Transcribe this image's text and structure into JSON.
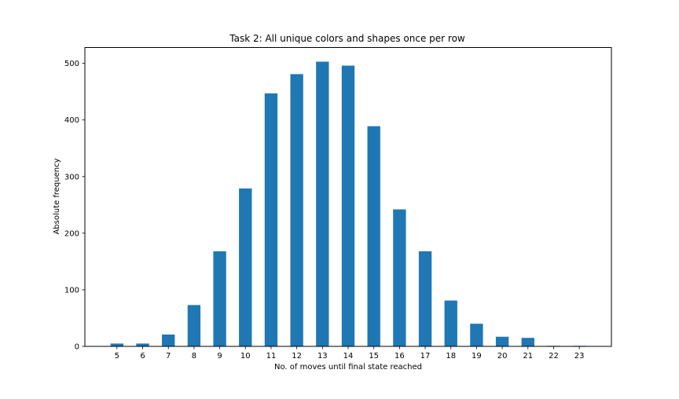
{
  "chart_data": {
    "type": "bar",
    "title": "Task 2: All unique colors and shapes once per row",
    "xlabel": "No. of moves until final state reached",
    "ylabel": "Absolute frequency",
    "categories": [
      "5",
      "6",
      "7",
      "8",
      "9",
      "10",
      "11",
      "12",
      "13",
      "14",
      "15",
      "16",
      "17",
      "18",
      "19",
      "20",
      "21",
      "22",
      "23"
    ],
    "values": [
      5,
      5,
      21,
      73,
      168,
      279,
      447,
      481,
      503,
      496,
      389,
      242,
      168,
      81,
      40,
      17,
      15,
      1,
      1
    ],
    "xlim": [
      3.75,
      24.25
    ],
    "ylim": [
      0,
      528
    ],
    "yticks": [
      0,
      100,
      200,
      300,
      400,
      500
    ],
    "bar_width": 0.5,
    "bar_color": "#1f77b4",
    "grid": false,
    "legend": "none"
  }
}
